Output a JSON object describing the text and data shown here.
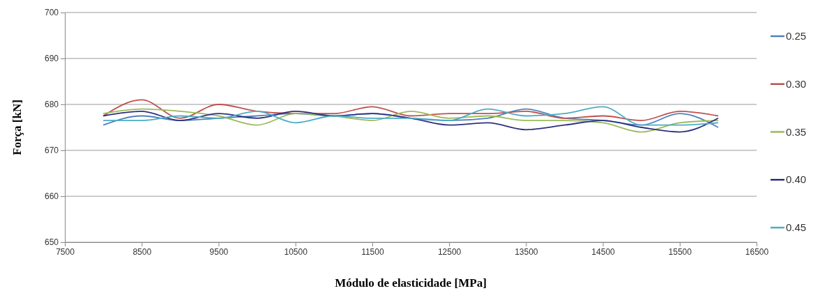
{
  "chart_data": {
    "type": "line",
    "xlabel": "Módulo de elasticidade [MPa]",
    "ylabel": "Força [kN]",
    "x": [
      8000,
      8500,
      9000,
      9500,
      10000,
      10500,
      11000,
      11500,
      12000,
      12500,
      13000,
      13500,
      14000,
      14500,
      15000,
      15500,
      16000
    ],
    "xlim": [
      7500,
      16500
    ],
    "xticks": [
      7500,
      8500,
      9500,
      10500,
      11500,
      12500,
      13500,
      14500,
      15500,
      16500
    ],
    "ylim": [
      650,
      700
    ],
    "yticks": [
      650,
      660,
      670,
      680,
      690,
      700
    ],
    "grid": "y",
    "legend": "right",
    "marker": "none",
    "line_style": "solid",
    "series": [
      {
        "name": "0.25",
        "color": "#4f81bd",
        "values": [
          675.5,
          677.5,
          676.5,
          677,
          677.5,
          678,
          677.5,
          678,
          677,
          676.5,
          677,
          679,
          677,
          676.5,
          675.5,
          678,
          675
        ]
      },
      {
        "name": "0.30",
        "color": "#c0504d",
        "values": [
          677.5,
          681,
          677,
          680,
          678.5,
          678,
          678,
          679.5,
          677.5,
          678,
          678,
          678.5,
          677,
          677.5,
          676.5,
          678.5,
          677.5
        ]
      },
      {
        "name": "0.35",
        "color": "#9bbb59",
        "values": [
          678,
          679,
          678.5,
          677.5,
          675.5,
          678,
          677.5,
          676.5,
          678.5,
          677,
          677.5,
          676.5,
          676.5,
          676,
          674,
          676,
          676.5
        ]
      },
      {
        "name": "0.40",
        "color": "#2e2f7f",
        "values": [
          677.5,
          678.5,
          676.5,
          678,
          677,
          678.5,
          677.5,
          678,
          677,
          675.5,
          676,
          674.5,
          675.5,
          676.5,
          675,
          674,
          677
        ]
      },
      {
        "name": "0.45",
        "color": "#4bacc6",
        "values": [
          676.5,
          676.5,
          677.5,
          677,
          678.5,
          676,
          677.5,
          677,
          677,
          676.5,
          679,
          677.5,
          678,
          679.5,
          675.5,
          675.5,
          676
        ]
      }
    ]
  }
}
